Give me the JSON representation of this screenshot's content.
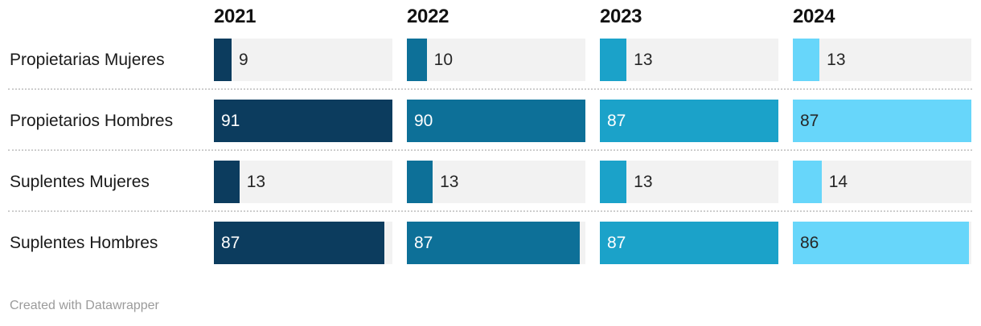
{
  "chart_data": {
    "type": "bar",
    "orientation": "horizontal",
    "layout": "small-multiples-per-year",
    "columns": [
      "2021",
      "2022",
      "2023",
      "2024"
    ],
    "rows": [
      {
        "label": "Propietarias Mujeres",
        "values": [
          9,
          10,
          13,
          13
        ]
      },
      {
        "label": "Propietarios Hombres",
        "values": [
          91,
          90,
          87,
          87
        ]
      },
      {
        "label": "Suplentes Mujeres",
        "values": [
          13,
          13,
          13,
          14
        ]
      },
      {
        "label": "Suplentes Hombres",
        "values": [
          87,
          87,
          87,
          86
        ]
      }
    ],
    "xlim_per_column": [
      [
        0,
        91
      ],
      [
        0,
        90
      ],
      [
        0,
        87
      ],
      [
        0,
        87
      ]
    ],
    "column_colors": [
      "#0c3c5e",
      "#0d7098",
      "#1ba2c9",
      "#67d6fa"
    ],
    "inside_value_label_colors": [
      "#ffffff",
      "#ffffff",
      "#ffffff",
      "#262626"
    ],
    "outside_value_label_color": "#262626",
    "track_color": "#f2f2f2",
    "separator_color": "#cdcdcd",
    "gridlines": false,
    "legend_position": "none",
    "title": "",
    "xlabel": "",
    "ylabel": ""
  },
  "footer": {
    "credit": "Created with Datawrapper"
  }
}
